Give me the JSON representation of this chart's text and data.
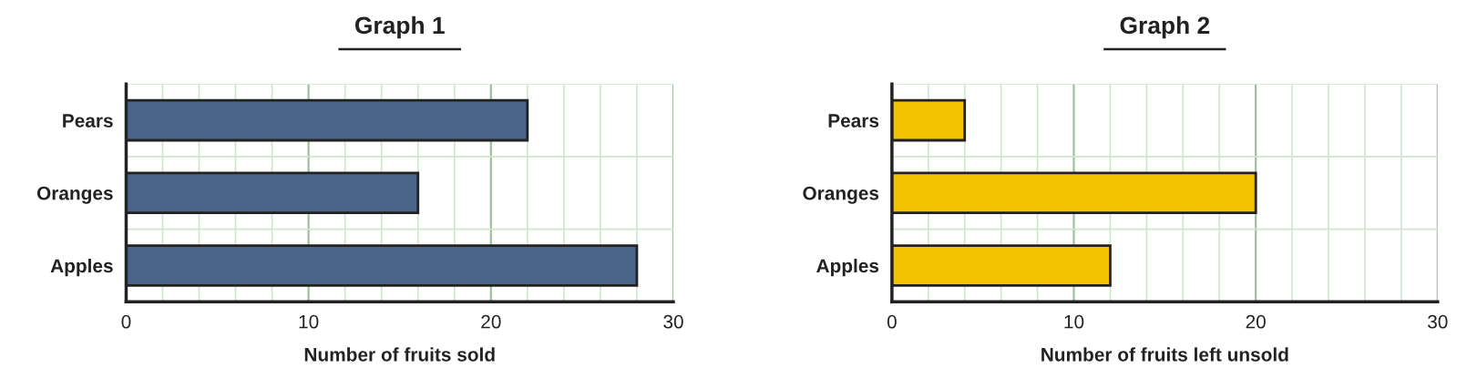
{
  "chart_data": [
    {
      "type": "bar",
      "title": "Graph 1",
      "orientation": "horizontal",
      "categories": [
        "Pears",
        "Oranges",
        "Apples"
      ],
      "values": [
        22,
        16,
        28
      ],
      "color": "#4a6588",
      "xlabel": "Number of fruits sold",
      "xlim": [
        0,
        30
      ],
      "xticks": [
        0,
        {
          "value": 2,
          "label": null
        },
        {
          "value": 4,
          "label": null
        },
        {
          "value": 6,
          "label": null
        },
        {
          "value": 8,
          "label": null
        },
        10,
        {
          "value": 12,
          "label": null
        },
        {
          "value": 14,
          "label": null
        },
        {
          "value": 16,
          "label": null
        },
        {
          "value": 18,
          "label": null
        },
        20,
        {
          "value": 22,
          "label": null
        },
        {
          "value": 24,
          "label": null
        },
        {
          "value": 26,
          "label": null
        },
        {
          "value": 28,
          "label": null
        },
        30
      ],
      "grid": true
    },
    {
      "type": "bar",
      "title": "Graph 2",
      "orientation": "horizontal",
      "categories": [
        "Pears",
        "Oranges",
        "Apples"
      ],
      "values": [
        4,
        20,
        12
      ],
      "color": "#f2c200",
      "xlabel": "Number of fruits left unsold",
      "xlim": [
        0,
        30
      ],
      "xticks": [
        0,
        {
          "value": 2,
          "label": null
        },
        {
          "value": 4,
          "label": null
        },
        {
          "value": 6,
          "label": null
        },
        {
          "value": 8,
          "label": null
        },
        10,
        {
          "value": 12,
          "label": null
        },
        {
          "value": 14,
          "label": null
        },
        {
          "value": 16,
          "label": null
        },
        {
          "value": 18,
          "label": null
        },
        20,
        {
          "value": 22,
          "label": null
        },
        {
          "value": 24,
          "label": null
        },
        {
          "value": 26,
          "label": null
        },
        {
          "value": 28,
          "label": null
        },
        30
      ],
      "grid": true
    }
  ]
}
